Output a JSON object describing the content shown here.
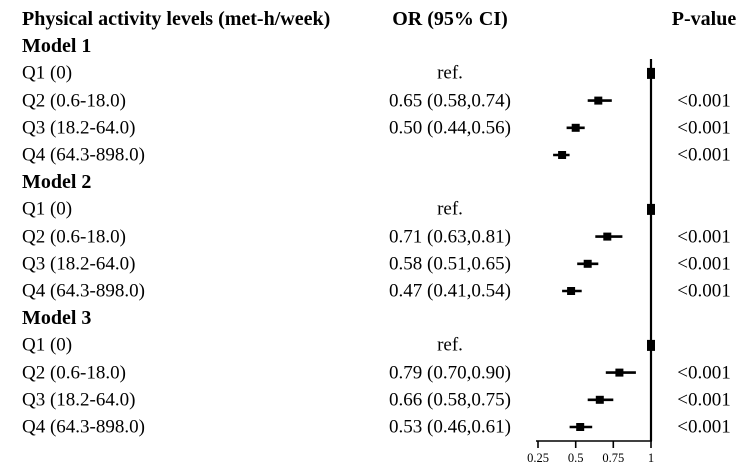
{
  "figure": {
    "background": "#ffffff",
    "text_color": "#000000"
  },
  "header": {
    "activity_label": "Physical activity levels (met-h/week)",
    "or_label": "OR (95% CI)",
    "pvalue_label": "P-value"
  },
  "chart_data": {
    "type": "forest",
    "title": "",
    "marker_color": "#000000",
    "x_axis": {
      "ticks": [
        "0.25",
        "0.5",
        "0.75",
        "1"
      ],
      "tick_values": [
        0.25,
        0.5,
        0.75,
        1
      ],
      "range": [
        0.25,
        1
      ],
      "reference_line": 1.0
    },
    "groups": [
      {
        "label": "Model 1",
        "rows": [
          {
            "label": "Q1 (0)",
            "or_text": "ref.",
            "p": "",
            "ref": true
          },
          {
            "label": "Q2 (0.6-18.0)",
            "or_text": "0.65 (0.58,0.74)",
            "or": 0.65,
            "ci_low": 0.58,
            "ci_high": 0.74,
            "p": "<0.001"
          },
          {
            "label": "Q3 (18.2-64.0)",
            "or_text": "0.50 (0.44,0.56)",
            "or": 0.5,
            "ci_low": 0.44,
            "ci_high": 0.56,
            "p": "<0.001"
          },
          {
            "label": "Q4 (64.3-898.0)",
            "or_text": "",
            "or": 0.41,
            "ci_low": 0.35,
            "ci_high": 0.46,
            "p": "<0.001"
          }
        ]
      },
      {
        "label": "Model 2",
        "rows": [
          {
            "label": "Q1 (0)",
            "or_text": "ref.",
            "p": "",
            "ref": true
          },
          {
            "label": "Q2 (0.6-18.0)",
            "or_text": "0.71 (0.63,0.81)",
            "or": 0.71,
            "ci_low": 0.63,
            "ci_high": 0.81,
            "p": "<0.001"
          },
          {
            "label": "Q3 (18.2-64.0)",
            "or_text": "0.58 (0.51,0.65)",
            "or": 0.58,
            "ci_low": 0.51,
            "ci_high": 0.65,
            "p": "<0.001"
          },
          {
            "label": "Q4 (64.3-898.0)",
            "or_text": "0.47 (0.41,0.54)",
            "or": 0.47,
            "ci_low": 0.41,
            "ci_high": 0.54,
            "p": "<0.001"
          }
        ]
      },
      {
        "label": "Model 3",
        "rows": [
          {
            "label": "Q1 (0)",
            "or_text": "ref.",
            "p": "",
            "ref": true
          },
          {
            "label": "Q2 (0.6-18.0)",
            "or_text": "0.79 (0.70,0.90)",
            "or": 0.79,
            "ci_low": 0.7,
            "ci_high": 0.9,
            "p": "<0.001"
          },
          {
            "label": "Q3 (18.2-64.0)",
            "or_text": "0.66 (0.58,0.75)",
            "or": 0.66,
            "ci_low": 0.58,
            "ci_high": 0.75,
            "p": "<0.001"
          },
          {
            "label": "Q4 (64.3-898.0)",
            "or_text": "0.53 (0.46,0.61)",
            "or": 0.53,
            "ci_low": 0.46,
            "ci_high": 0.61,
            "p": "<0.001"
          }
        ]
      }
    ]
  }
}
